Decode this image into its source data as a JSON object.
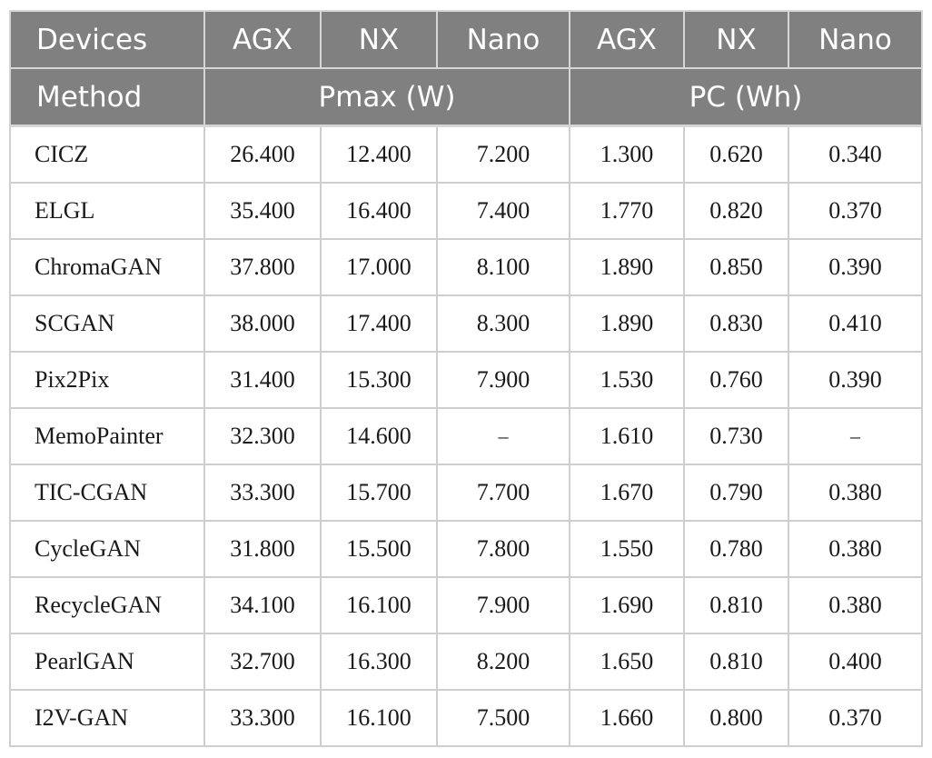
{
  "table": {
    "header_row1": {
      "devices_label": "Devices",
      "col1": "AGX",
      "col2": "NX",
      "col3": "Nano",
      "col4": "AGX",
      "col5": "NX",
      "col6": "Nano"
    },
    "header_row2": {
      "method_label": "Method",
      "pmax_group": "Pmax (W)",
      "pc_group": "PC (Wh)"
    },
    "rows": [
      {
        "method": "CICZ",
        "pmax_agx": "26.400",
        "pmax_nx": "12.400",
        "pmax_nano": "7.200",
        "pc_agx": "1.300",
        "pc_nx": "0.620",
        "pc_nano": "0.340"
      },
      {
        "method": "ELGL",
        "pmax_agx": "35.400",
        "pmax_nx": "16.400",
        "pmax_nano": "7.400",
        "pc_agx": "1.770",
        "pc_nx": "0.820",
        "pc_nano": "0.370"
      },
      {
        "method": "ChromaGAN",
        "pmax_agx": "37.800",
        "pmax_nx": "17.000",
        "pmax_nano": "8.100",
        "pc_agx": "1.890",
        "pc_nx": "0.850",
        "pc_nano": "0.390"
      },
      {
        "method": "SCGAN",
        "pmax_agx": "38.000",
        "pmax_nx": "17.400",
        "pmax_nano": "8.300",
        "pc_agx": "1.890",
        "pc_nx": "0.830",
        "pc_nano": "0.410"
      },
      {
        "method": "Pix2Pix",
        "pmax_agx": "31.400",
        "pmax_nx": "15.300",
        "pmax_nano": "7.900",
        "pc_agx": "1.530",
        "pc_nx": "0.760",
        "pc_nano": "0.390"
      },
      {
        "method": "MemoPainter",
        "pmax_agx": "32.300",
        "pmax_nx": "14.600",
        "pmax_nano": "–",
        "pc_agx": "1.610",
        "pc_nx": "0.730",
        "pc_nano": "–"
      },
      {
        "method": "TIC-CGAN",
        "pmax_agx": "33.300",
        "pmax_nx": "15.700",
        "pmax_nano": "7.700",
        "pc_agx": "1.670",
        "pc_nx": "0.790",
        "pc_nano": "0.380"
      },
      {
        "method": "CycleGAN",
        "pmax_agx": "31.800",
        "pmax_nx": "15.500",
        "pmax_nano": "7.800",
        "pc_agx": "1.550",
        "pc_nx": "0.780",
        "pc_nano": "0.380"
      },
      {
        "method": "RecycleGAN",
        "pmax_agx": "34.100",
        "pmax_nx": "16.100",
        "pmax_nano": "7.900",
        "pc_agx": "1.690",
        "pc_nx": "0.810",
        "pc_nano": "0.380"
      },
      {
        "method": "PearlGAN",
        "pmax_agx": "32.700",
        "pmax_nx": "16.300",
        "pmax_nano": "8.200",
        "pc_agx": "1.650",
        "pc_nx": "0.810",
        "pc_nano": "0.400"
      },
      {
        "method": "I2V-GAN",
        "pmax_agx": "33.300",
        "pmax_nx": "16.100",
        "pmax_nano": "7.500",
        "pc_agx": "1.660",
        "pc_nx": "0.800",
        "pc_nano": "0.370"
      }
    ],
    "colors": {
      "header_bg": "#808080",
      "header_text": "#ffffff",
      "grid_line": "#cfcfcf"
    }
  }
}
